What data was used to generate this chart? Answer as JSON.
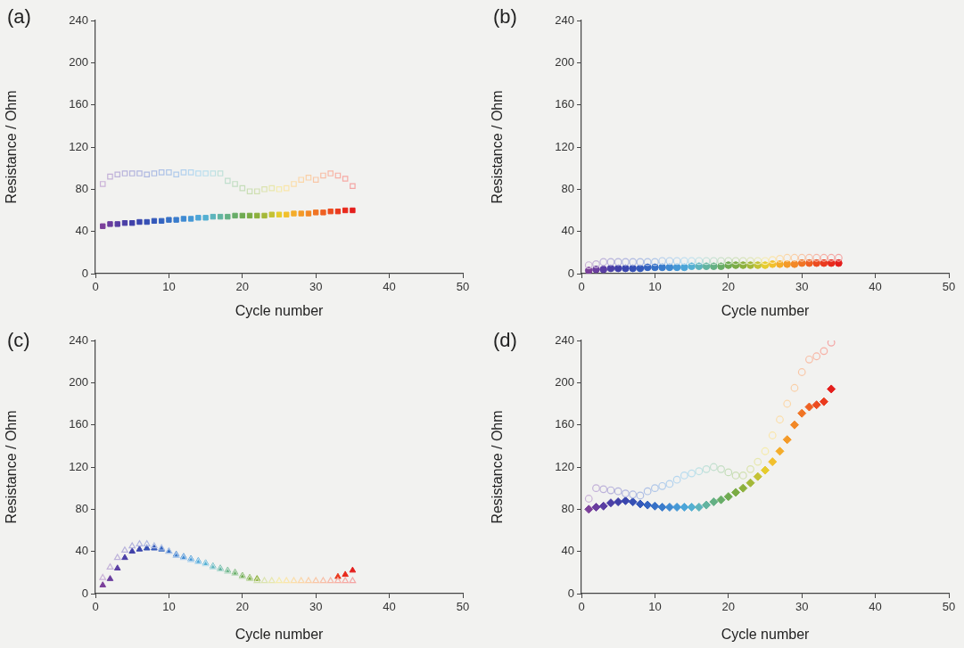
{
  "chart_data": [
    {
      "type": "scatter",
      "title": "(a)",
      "xlabel": "Cycle number",
      "ylabel": "Resistance / Ohm",
      "xlim": [
        0,
        50
      ],
      "xticks": [
        0,
        10,
        20,
        30,
        40,
        50
      ],
      "ylim": [
        0,
        240
      ],
      "yticks": [
        0,
        40,
        80,
        120,
        160,
        200,
        240
      ],
      "x": [
        1,
        2,
        3,
        4,
        5,
        6,
        7,
        8,
        9,
        10,
        11,
        12,
        13,
        14,
        15,
        16,
        17,
        18,
        19,
        20,
        21,
        22,
        23,
        24,
        25,
        26,
        27,
        28,
        29,
        30,
        31,
        32,
        33,
        34,
        35
      ],
      "series": [
        {
          "marker": "square",
          "values": [
            85,
            92,
            94,
            95,
            95,
            95,
            94,
            95,
            96,
            96,
            94,
            96,
            96,
            95,
            95,
            95,
            95,
            88,
            85,
            81,
            78,
            78,
            80,
            81,
            80,
            81,
            85,
            89,
            91,
            89,
            93,
            95,
            93,
            90,
            83
          ],
          "colors": [
            "#cab2d7",
            "#c3b1d8",
            "#bdb2da",
            "#b7b2db",
            "#b3b3dc",
            "#b0b5df",
            "#afb9e1",
            "#aebde3",
            "#aec1e6",
            "#afc6e8",
            "#b0cbeb",
            "#b2d0ed",
            "#b5d6ef",
            "#b7dbef",
            "#bbdfed",
            "#bee1e4",
            "#c0e1d9",
            "#c1dfce",
            "#c3dec3",
            "#c5ddb9",
            "#cadeb4",
            "#d1e0b1",
            "#dbe3af",
            "#e7e7ae",
            "#f5ebab",
            "#fae6ab",
            "#fbdeaa",
            "#fbd7a9",
            "#fad0a8",
            "#f9c7a7",
            "#f8bfa7",
            "#f7b7a6",
            "#f7b0a5",
            "#f6aaa4",
            "#f4a5a4"
          ]
        },
        {
          "marker": "square",
          "values": [
            45,
            47,
            47,
            48,
            48,
            49,
            49,
            50,
            50,
            51,
            51,
            52,
            52,
            53,
            53,
            54,
            54,
            54,
            55,
            55,
            55,
            55,
            55,
            56,
            56,
            56,
            57,
            57,
            57,
            58,
            58,
            59,
            59,
            60,
            60
          ],
          "colors": [
            "#7b3f9a",
            "#6a3d9e",
            "#5a3ea3",
            "#4b3fa6",
            "#4040a8",
            "#3a46ae",
            "#3650b4",
            "#3459ba",
            "#3464c0",
            "#3670c6",
            "#3a7ccc",
            "#3f8ad2",
            "#4598d6",
            "#4ca5d8",
            "#54b0d2",
            "#5db4bc",
            "#62b4a0",
            "#64b084",
            "#68ad68",
            "#6eaa50",
            "#7aab44",
            "#8cb03c",
            "#a4b838",
            "#c4c234",
            "#e6cc2e",
            "#f2c02c",
            "#f4ac2a",
            "#f49a28",
            "#f28826",
            "#f07424",
            "#ee6022",
            "#ec4c20",
            "#ea3a1e",
            "#e82a1c",
            "#e41e1c"
          ]
        }
      ]
    },
    {
      "type": "scatter",
      "title": "(b)",
      "xlabel": "Cycle number",
      "ylabel": "Resistance / Ohm",
      "xlim": [
        0,
        50
      ],
      "xticks": [
        0,
        10,
        20,
        30,
        40,
        50
      ],
      "ylim": [
        0,
        240
      ],
      "yticks": [
        0,
        40,
        80,
        120,
        160,
        200,
        240
      ],
      "x": [
        1,
        2,
        3,
        4,
        5,
        6,
        7,
        8,
        9,
        10,
        11,
        12,
        13,
        14,
        15,
        16,
        17,
        18,
        19,
        20,
        21,
        22,
        23,
        24,
        25,
        26,
        27,
        28,
        29,
        30,
        31,
        32,
        33,
        34,
        35
      ],
      "series": [
        {
          "marker": "circle",
          "values": [
            8,
            9,
            11,
            11,
            11,
            11,
            11,
            11,
            11,
            11,
            12,
            12,
            12,
            12,
            12,
            12,
            12,
            12,
            12,
            12,
            12,
            12,
            12,
            12,
            12,
            13,
            14,
            15,
            15,
            15,
            15,
            15,
            15,
            15,
            15
          ],
          "colors": [
            "#cab2d7",
            "#c3b1d8",
            "#bdb2da",
            "#b7b2db",
            "#b3b3dc",
            "#b0b5df",
            "#afb9e1",
            "#aebde3",
            "#aec1e6",
            "#afc6e8",
            "#b0cbeb",
            "#b2d0ed",
            "#b5d6ef",
            "#b7dbef",
            "#bbdfed",
            "#bee1e4",
            "#c0e1d9",
            "#c1dfce",
            "#c3dec3",
            "#c5ddb9",
            "#cadeb4",
            "#d1e0b1",
            "#dbe3af",
            "#e7e7ae",
            "#f5ebab",
            "#fae6ab",
            "#fbdeaa",
            "#fbd7a9",
            "#fad0a8",
            "#f9c7a7",
            "#f8bfa7",
            "#f7b7a6",
            "#f7b0a5",
            "#f6aaa4",
            "#f4a5a4"
          ]
        },
        {
          "marker": "circle",
          "values": [
            3,
            4,
            4,
            5,
            5,
            5,
            5,
            5,
            6,
            6,
            6,
            6,
            6,
            6,
            7,
            7,
            7,
            7,
            7,
            8,
            8,
            8,
            8,
            8,
            8,
            9,
            9,
            9,
            9,
            10,
            10,
            10,
            10,
            10,
            10
          ],
          "colors": [
            "#7b3f9a",
            "#6a3d9e",
            "#5a3ea3",
            "#4b3fa6",
            "#4040a8",
            "#3a46ae",
            "#3650b4",
            "#3459ba",
            "#3464c0",
            "#3670c6",
            "#3a7ccc",
            "#3f8ad2",
            "#4598d6",
            "#4ca5d8",
            "#54b0d2",
            "#5db4bc",
            "#62b4a0",
            "#64b084",
            "#68ad68",
            "#6eaa50",
            "#7aab44",
            "#8cb03c",
            "#a4b838",
            "#c4c234",
            "#e6cc2e",
            "#f2c02c",
            "#f4ac2a",
            "#f49a28",
            "#f28826",
            "#f07424",
            "#ee6022",
            "#ec4c20",
            "#ea3a1e",
            "#e82a1c",
            "#e41e1c"
          ]
        }
      ]
    },
    {
      "type": "scatter",
      "title": "(c)",
      "xlabel": "Cycle number",
      "ylabel": "Resistance / Ohm",
      "xlim": [
        0,
        50
      ],
      "xticks": [
        0,
        10,
        20,
        30,
        40,
        50
      ],
      "ylim": [
        0,
        240
      ],
      "yticks": [
        0,
        40,
        80,
        120,
        160,
        200,
        240
      ],
      "x": [
        1,
        2,
        3,
        4,
        5,
        6,
        7,
        8,
        9,
        10,
        11,
        12,
        13,
        14,
        15,
        16,
        17,
        18,
        19,
        20,
        21,
        22,
        23,
        24,
        25,
        26,
        27,
        28,
        29,
        30,
        31,
        32,
        33,
        34,
        35
      ],
      "series": [
        {
          "marker": "triangle",
          "values": [
            15,
            25,
            34,
            41,
            45,
            47,
            47,
            45,
            43,
            40,
            36,
            34,
            32,
            30,
            28,
            25,
            23,
            21,
            19,
            16,
            14,
            12,
            12,
            12,
            12,
            12,
            12,
            12,
            12,
            12,
            12,
            12,
            12,
            12,
            12
          ],
          "colors": [
            "#cab2d7",
            "#c3b1d8",
            "#bdb2da",
            "#b7b2db",
            "#b3b3dc",
            "#b0b5df",
            "#afb9e1",
            "#aebde3",
            "#aec1e6",
            "#afc6e8",
            "#b0cbeb",
            "#b2d0ed",
            "#b5d6ef",
            "#b7dbef",
            "#bbdfed",
            "#bee1e4",
            "#c0e1d9",
            "#c1dfce",
            "#c3dec3",
            "#c5ddb9",
            "#cadeb4",
            "#d1e0b1",
            "#dbe3af",
            "#e7e7ae",
            "#f5ebab",
            "#fae6ab",
            "#fbdeaa",
            "#fbd7a9",
            "#fad0a8",
            "#f9c7a7",
            "#f8bfa7",
            "#f7b7a6",
            "#f7b0a5",
            "#f6aaa4",
            "#f4a5a4"
          ]
        },
        {
          "marker": "triangle",
          "values": [
            8,
            14,
            24,
            34,
            40,
            42,
            43,
            43,
            42,
            40,
            37,
            35,
            33,
            31,
            29,
            26,
            24,
            22,
            20,
            17,
            15,
            14,
            null,
            null,
            null,
            null,
            null,
            null,
            null,
            null,
            null,
            null,
            16,
            18,
            22
          ],
          "colors": [
            "#7b3f9a",
            "#6a3d9e",
            "#5a3ea3",
            "#4b3fa6",
            "#4040a8",
            "#3a46ae",
            "#3650b4",
            "#3459ba",
            "#3464c0",
            "#3670c6",
            "#3a7ccc",
            "#3f8ad2",
            "#4598d6",
            "#4ca5d8",
            "#54b0d2",
            "#5db4bc",
            "#62b4a0",
            "#64b084",
            "#68ad68",
            "#6eaa50",
            "#7aab44",
            "#8cb03c",
            "#a4b838",
            "#c4c234",
            "#e6cc2e",
            "#f2c02c",
            "#f4ac2a",
            "#f49a28",
            "#f28826",
            "#f07424",
            "#ee6022",
            "#ec4c20",
            "#ea3a1e",
            "#e82a1c",
            "#e41e1c"
          ]
        }
      ]
    },
    {
      "type": "scatter",
      "title": "(d)",
      "xlabel": "Cycle number",
      "ylabel": "Resistance / Ohm",
      "xlim": [
        0,
        50
      ],
      "xticks": [
        0,
        10,
        20,
        30,
        40,
        50
      ],
      "ylim": [
        0,
        240
      ],
      "yticks": [
        0,
        40,
        80,
        120,
        160,
        200,
        240
      ],
      "x": [
        1,
        2,
        3,
        4,
        5,
        6,
        7,
        8,
        9,
        10,
        11,
        12,
        13,
        14,
        15,
        16,
        17,
        18,
        19,
        20,
        21,
        22,
        23,
        24,
        25,
        26,
        27,
        28,
        29,
        30,
        31,
        32,
        33,
        34
      ],
      "series": [
        {
          "marker": "circle",
          "values": [
            90,
            100,
            99,
            98,
            97,
            95,
            94,
            93,
            97,
            100,
            102,
            104,
            108,
            112,
            114,
            116,
            118,
            120,
            118,
            115,
            112,
            112,
            118,
            125,
            135,
            150,
            165,
            180,
            195,
            210,
            222,
            225,
            230,
            238
          ],
          "colors": [
            "#cab2d7",
            "#c3b1d8",
            "#bdb2da",
            "#b7b2db",
            "#b3b3dc",
            "#b0b5df",
            "#afb9e1",
            "#aebde3",
            "#aec1e6",
            "#afc6e8",
            "#b0cbeb",
            "#b2d0ed",
            "#b5d6ef",
            "#b7dbef",
            "#bbdfed",
            "#bee1e4",
            "#c0e1d9",
            "#c1dfce",
            "#c3dec3",
            "#c5ddb9",
            "#cadeb4",
            "#d1e0b1",
            "#dbe3af",
            "#e7e7ae",
            "#f5ebab",
            "#fae6ab",
            "#fbdeaa",
            "#fbd7a9",
            "#fad0a8",
            "#f9c7a7",
            "#f8bfa7",
            "#f7b7a6",
            "#f7b0a5",
            "#f4a5a4"
          ]
        },
        {
          "marker": "diamond",
          "values": [
            80,
            82,
            83,
            86,
            87,
            88,
            87,
            85,
            84,
            83,
            82,
            82,
            82,
            82,
            82,
            82,
            84,
            87,
            89,
            92,
            96,
            100,
            105,
            111,
            117,
            125,
            135,
            146,
            160,
            171,
            177,
            179,
            182,
            194
          ],
          "colors": [
            "#7b3f9a",
            "#6a3d9e",
            "#5a3ea3",
            "#4b3fa6",
            "#4040a8",
            "#3a46ae",
            "#3650b4",
            "#3459ba",
            "#3464c0",
            "#3670c6",
            "#3a7ccc",
            "#3f8ad2",
            "#4598d6",
            "#4ca5d8",
            "#54b0d2",
            "#5db4bc",
            "#62b4a0",
            "#64b084",
            "#68ad68",
            "#6eaa50",
            "#7aab44",
            "#8cb03c",
            "#a4b838",
            "#c4c234",
            "#e6cc2e",
            "#f2c02c",
            "#f4ac2a",
            "#f49a28",
            "#f28826",
            "#f07424",
            "#ee6022",
            "#ec4c20",
            "#ea3a1e",
            "#e41e1c"
          ]
        }
      ]
    }
  ]
}
